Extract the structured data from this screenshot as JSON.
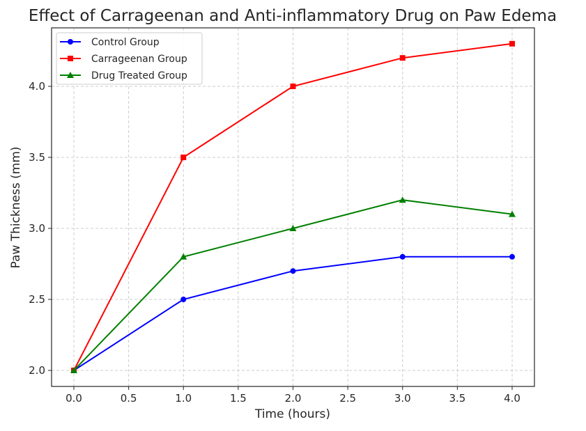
{
  "chart_data": {
    "type": "line",
    "title": "Effect of Carrageenan and Anti-inflammatory Drug on Paw Edema",
    "xlabel": "Time (hours)",
    "ylabel": "Paw Thickness (mm)",
    "xlim": [
      -0.2,
      4.2
    ],
    "ylim": [
      1.89,
      4.41
    ],
    "x_ticks": [
      "0.0",
      "0.5",
      "1.0",
      "1.5",
      "2.0",
      "2.5",
      "3.0",
      "3.5",
      "4.0"
    ],
    "y_ticks": [
      "2.0",
      "2.5",
      "3.0",
      "3.5",
      "4.0"
    ],
    "grid": true,
    "legend_position": "top-left",
    "x": [
      0,
      1,
      2,
      3,
      4
    ],
    "series": [
      {
        "name": "Control Group",
        "values": [
          2.0,
          2.5,
          2.7,
          2.8,
          2.8
        ],
        "color": "#0000ff",
        "marker": "circle"
      },
      {
        "name": "Carrageenan Group",
        "values": [
          2.0,
          3.5,
          4.0,
          4.2,
          4.3
        ],
        "color": "#ff0000",
        "marker": "square"
      },
      {
        "name": "Drug Treated Group",
        "values": [
          2.0,
          2.8,
          3.0,
          3.2,
          3.1
        ],
        "color": "#008000",
        "marker": "triangle"
      }
    ]
  }
}
